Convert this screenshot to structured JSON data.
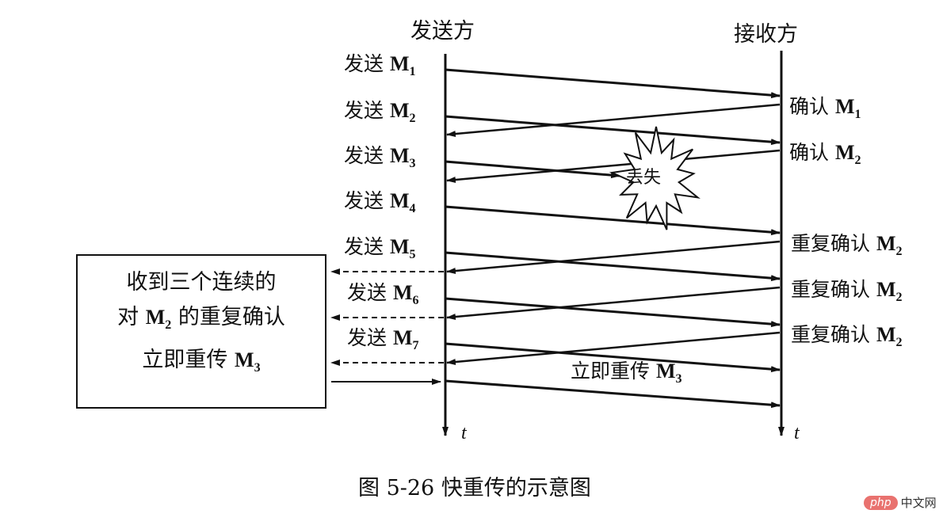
{
  "sender_title": "发送方",
  "receiver_title": "接收方",
  "time_label": "t",
  "send_word": "发送",
  "msg": "M",
  "sends": [
    "1",
    "2",
    "3",
    "4",
    "5",
    "6",
    "7"
  ],
  "acks": [
    {
      "text": "确认",
      "sub": "1"
    },
    {
      "text": "确认",
      "sub": "2"
    },
    {
      "text": "重复确认",
      "sub": "2"
    },
    {
      "text": "重复确认",
      "sub": "2"
    },
    {
      "text": "重复确认",
      "sub": "2"
    }
  ],
  "lost_label": "丢失",
  "box": {
    "line1": "收到三个连续的",
    "line2_pre": "对",
    "line2_sub": "2",
    "line2_post": "的重复确认",
    "line3_pre": "立即重传",
    "line3_sub": "3"
  },
  "retransmit": {
    "text": "立即重传",
    "sub": "3"
  },
  "caption": "图 5-26    快重传的示意图",
  "watermark": {
    "logo": "php",
    "text": "中文网"
  }
}
